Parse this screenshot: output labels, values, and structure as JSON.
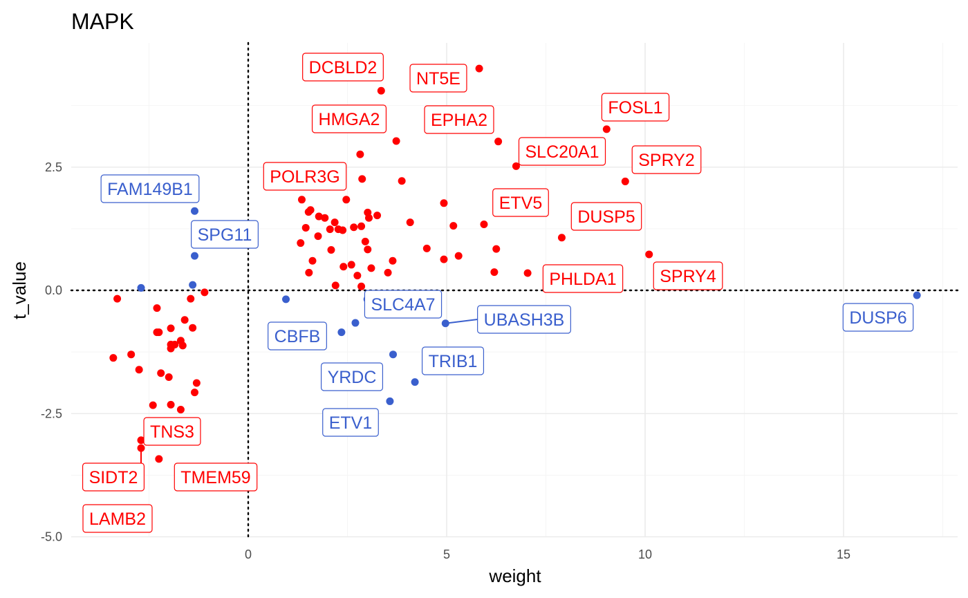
{
  "chart_data": {
    "type": "scatter",
    "title": "MAPK",
    "xlabel": "weight",
    "ylabel": "t_value",
    "xlim": [
      -4.5,
      17.5
    ],
    "ylim": [
      -5.0,
      5.0
    ],
    "x_ticks": [
      0,
      5,
      10,
      15
    ],
    "x_tick_labels": [
      "0",
      "5",
      "10",
      "15"
    ],
    "y_ticks": [
      -5.0,
      -2.5,
      0.0,
      2.5
    ],
    "y_tick_labels": [
      "-5.0",
      "-2.5",
      "0.0",
      "2.5"
    ],
    "reference_lines": {
      "x": 0,
      "y": 0
    },
    "grid": true,
    "colors": {
      "positive": "#ff0000",
      "negative": "#3a5fcd"
    },
    "series": [
      {
        "color": "#ff0000",
        "points": [
          [
            5.82,
            4.5
          ],
          [
            3.35,
            4.05
          ],
          [
            9.03,
            3.27
          ],
          [
            3.73,
            3.03
          ],
          [
            6.3,
            3.02
          ],
          [
            2.82,
            2.76
          ],
          [
            6.75,
            2.52
          ],
          [
            2.87,
            2.26
          ],
          [
            3.87,
            2.22
          ],
          [
            9.5,
            2.21
          ],
          [
            1.35,
            1.84
          ],
          [
            2.47,
            1.84
          ],
          [
            4.93,
            1.77
          ],
          [
            1.52,
            1.59
          ],
          [
            1.57,
            1.63
          ],
          [
            3.01,
            1.58
          ],
          [
            1.78,
            1.5
          ],
          [
            1.93,
            1.47
          ],
          [
            3.04,
            1.47
          ],
          [
            3.25,
            1.52
          ],
          [
            2.18,
            1.38
          ],
          [
            4.08,
            1.38
          ],
          [
            5.94,
            1.34
          ],
          [
            5.17,
            1.31
          ],
          [
            2.66,
            1.28
          ],
          [
            2.85,
            1.3
          ],
          [
            1.45,
            1.27
          ],
          [
            2.06,
            1.24
          ],
          [
            2.27,
            1.24
          ],
          [
            2.38,
            1.22
          ],
          [
            1.76,
            1.1
          ],
          [
            7.9,
            1.07
          ],
          [
            1.32,
            0.96
          ],
          [
            2.95,
            0.99
          ],
          [
            3.01,
            0.83
          ],
          [
            4.5,
            0.85
          ],
          [
            6.25,
            0.84
          ],
          [
            2.09,
            0.82
          ],
          [
            10.1,
            0.73
          ],
          [
            5.3,
            0.7
          ],
          [
            1.62,
            0.6
          ],
          [
            4.93,
            0.63
          ],
          [
            3.64,
            0.6
          ],
          [
            2.6,
            0.52
          ],
          [
            2.4,
            0.48
          ],
          [
            3.1,
            0.45
          ],
          [
            1.53,
            0.36
          ],
          [
            3.52,
            0.36
          ],
          [
            6.2,
            0.37
          ],
          [
            7.04,
            0.35
          ],
          [
            2.75,
            0.3
          ],
          [
            2.2,
            0.1
          ],
          [
            2.85,
            0.08
          ],
          [
            -1.1,
            -0.04
          ],
          [
            -3.3,
            -0.17
          ],
          [
            -1.45,
            -0.17
          ],
          [
            -2.3,
            -0.36
          ],
          [
            -1.6,
            -0.6
          ],
          [
            -1.4,
            -0.76
          ],
          [
            -2.3,
            -0.85
          ],
          [
            -1.95,
            -0.77
          ],
          [
            -2.25,
            -0.85
          ],
          [
            -1.7,
            -1.02
          ],
          [
            -1.95,
            -1.1
          ],
          [
            -1.85,
            -1.1
          ],
          [
            -1.65,
            -1.12
          ],
          [
            -1.95,
            -1.18
          ],
          [
            -3.4,
            -1.37
          ],
          [
            -2.95,
            -1.3
          ],
          [
            -2.75,
            -1.61
          ],
          [
            -2.2,
            -1.68
          ],
          [
            -2.0,
            -1.76
          ],
          [
            -1.3,
            -1.88
          ],
          [
            -1.35,
            -2.07
          ],
          [
            -2.4,
            -2.33
          ],
          [
            -1.95,
            -2.32
          ],
          [
            -1.7,
            -2.42
          ],
          [
            -2.7,
            -3.04
          ],
          [
            -2.7,
            -3.2
          ],
          [
            -2.25,
            -3.42
          ]
        ]
      },
      {
        "color": "#3a5fcd",
        "points": [
          [
            16.85,
            -0.1
          ],
          [
            -1.35,
            1.61
          ],
          [
            -1.35,
            0.7
          ],
          [
            -1.4,
            0.11
          ],
          [
            -2.7,
            0.05
          ],
          [
            0.95,
            -0.18
          ],
          [
            3.0,
            -0.18
          ],
          [
            2.7,
            -0.66
          ],
          [
            4.97,
            -0.67
          ],
          [
            2.35,
            -0.85
          ],
          [
            3.65,
            -1.3
          ],
          [
            4.2,
            -1.86
          ],
          [
            3.57,
            -2.25
          ]
        ]
      }
    ],
    "labels": [
      {
        "text": "DCBLD2",
        "color": "#ff0000"
      },
      {
        "text": "NT5E",
        "color": "#ff0000"
      },
      {
        "text": "FOSL1",
        "color": "#ff0000"
      },
      {
        "text": "HMGA2",
        "color": "#ff0000"
      },
      {
        "text": "EPHA2",
        "color": "#ff0000"
      },
      {
        "text": "SLC20A1",
        "color": "#ff0000"
      },
      {
        "text": "SPRY2",
        "color": "#ff0000"
      },
      {
        "text": "POLR3G",
        "color": "#ff0000"
      },
      {
        "text": "ETV5",
        "color": "#ff0000"
      },
      {
        "text": "DUSP5",
        "color": "#ff0000"
      },
      {
        "text": "PHLDA1",
        "color": "#ff0000"
      },
      {
        "text": "SPRY4",
        "color": "#ff0000"
      },
      {
        "text": "TNS3",
        "color": "#ff0000"
      },
      {
        "text": "SIDT2",
        "color": "#ff0000"
      },
      {
        "text": "TMEM59",
        "color": "#ff0000"
      },
      {
        "text": "LAMB2",
        "color": "#ff0000"
      },
      {
        "text": "FAM149B1",
        "color": "#3a5fcd"
      },
      {
        "text": "SPG11",
        "color": "#3a5fcd"
      },
      {
        "text": "SLC4A7",
        "color": "#3a5fcd"
      },
      {
        "text": "UBASH3B",
        "color": "#3a5fcd"
      },
      {
        "text": "DUSP6",
        "color": "#3a5fcd"
      },
      {
        "text": "CBFB",
        "color": "#3a5fcd"
      },
      {
        "text": "TRIB1",
        "color": "#3a5fcd"
      },
      {
        "text": "YRDC",
        "color": "#3a5fcd"
      },
      {
        "text": "ETV1",
        "color": "#3a5fcd"
      }
    ]
  }
}
